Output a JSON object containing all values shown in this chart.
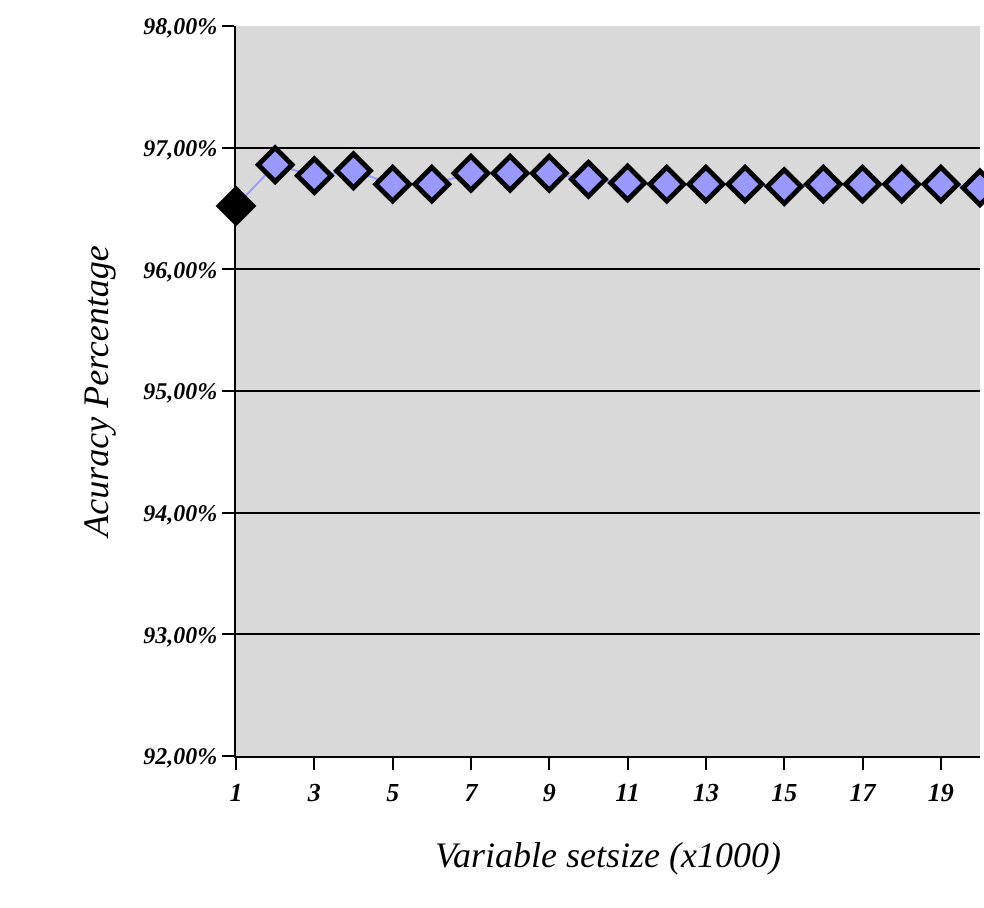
{
  "chart_data": {
    "type": "line",
    "xlabel": "Variable setsize (x1000)",
    "ylabel": "Acuracy Percentage",
    "x": [
      1,
      2,
      3,
      4,
      5,
      6,
      7,
      8,
      9,
      10,
      11,
      12,
      13,
      14,
      15,
      16,
      17,
      18,
      19,
      20
    ],
    "series": [
      {
        "color": "#9999ff",
        "colors": [
          "#000000",
          "#9999ff",
          "#9999ff",
          "#9999ff",
          "#9999ff",
          "#9999ff",
          "#9999ff",
          "#9999ff",
          "#9999ff",
          "#9999ff",
          "#9999ff",
          "#9999ff",
          "#9999ff",
          "#9999ff",
          "#9999ff",
          "#9999ff",
          "#9999ff",
          "#9999ff",
          "#9999ff",
          "#9999ff"
        ],
        "values": [
          96.52,
          96.86,
          96.77,
          96.81,
          96.7,
          96.7,
          96.79,
          96.79,
          96.79,
          96.74,
          96.71,
          96.7,
          96.7,
          96.7,
          96.68,
          96.7,
          96.7,
          96.7,
          96.7,
          96.67
        ]
      }
    ],
    "xlim": [
      1,
      20
    ],
    "xticks": [
      1,
      3,
      5,
      7,
      9,
      11,
      13,
      15,
      17,
      19
    ],
    "ylim": [
      92,
      98
    ],
    "yticks": [
      {
        "value": 92,
        "label": "92,00%"
      },
      {
        "value": 93,
        "label": "93,00%"
      },
      {
        "value": 94,
        "label": "94,00%"
      },
      {
        "value": 95,
        "label": "95,00%"
      },
      {
        "value": 96,
        "label": "96,00%"
      },
      {
        "value": 97,
        "label": "97,00%"
      },
      {
        "value": 98,
        "label": "98,00%"
      }
    ],
    "grid": "y",
    "marker": "diamond",
    "line_style": "solid"
  }
}
